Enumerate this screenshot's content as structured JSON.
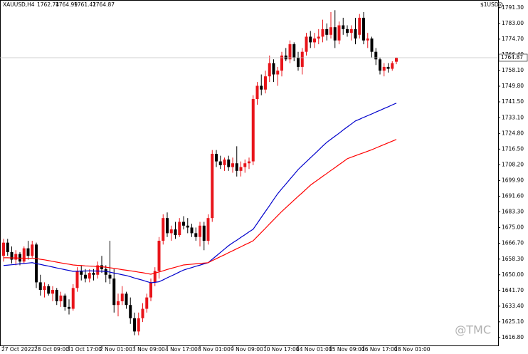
{
  "chart_data": {
    "type": "candlestick",
    "title": "XAUUSD,H4",
    "account": "$1USD",
    "watermark": "@TMC",
    "up_color": "#e8141a",
    "down_color": "#000000",
    "categories": [
      "27 Oct 2022",
      null,
      null,
      null,
      null,
      null,
      null,
      null,
      "28 Oct 09:00",
      null,
      null,
      null,
      null,
      null,
      null,
      null,
      "31 Oct 17:00",
      null,
      null,
      null,
      null,
      null,
      null,
      null,
      "2 Nov 01:00",
      null,
      null,
      null,
      null,
      null,
      null,
      null,
      "3 Nov 09:00",
      null,
      null,
      null,
      null,
      null,
      null,
      null,
      "4 Nov 17:00",
      null,
      null,
      null,
      null,
      null,
      null,
      null,
      "8 Nov 01:00",
      null,
      null,
      null,
      null,
      null,
      null,
      null,
      "9 Nov 09:00",
      null,
      null,
      null,
      null,
      null,
      null,
      null,
      "10 Nov 17:00",
      null,
      null,
      null,
      null,
      null,
      null,
      null,
      "14 Nov 01:00",
      null,
      null,
      null,
      null,
      null,
      null,
      null,
      "15 Nov 09:00",
      null,
      null,
      null,
      null,
      null,
      null,
      null,
      "16 Nov 17:00",
      null,
      null,
      null,
      null,
      null,
      null,
      null,
      "18 Nov 01:00"
    ],
    "open": [
      1660,
      1667,
      1662,
      1658,
      1661,
      1657,
      1664,
      1660,
      1666,
      1646,
      1642,
      1644,
      1640,
      1642,
      1636,
      1639,
      1633,
      1632,
      1643,
      1652,
      1650,
      1648,
      1651,
      1650,
      1655,
      1653,
      1650,
      1648,
      1634,
      1636,
      1640,
      1634,
      1627,
      1620,
      1627,
      1632,
      1638,
      1646,
      1652,
      1668,
      1680,
      1672,
      1674,
      1671,
      1678,
      1676,
      1675,
      1672,
      1670,
      1676,
      1668,
      1680,
      1714,
      1710,
      1708,
      1711,
      1707,
      1709,
      1705,
      1707,
      1709,
      1710,
      1743,
      1750,
      1748,
      1755,
      1762,
      1756,
      1758,
      1766,
      1764,
      1772,
      1765,
      1760,
      1768,
      1776,
      1773,
      1775,
      1776,
      1780,
      1777,
      1781,
      1774,
      1782,
      1780,
      1778,
      1780,
      1777,
      1786,
      1774,
      1775,
      1768,
      1764,
      1758,
      1760,
      1759,
      1762.74
    ],
    "high": [
      1669,
      1669,
      1665,
      1663,
      1662,
      1665,
      1668,
      1668,
      1667,
      1650,
      1646,
      1645,
      1644,
      1643,
      1641,
      1640,
      1637,
      1645,
      1654,
      1655,
      1653,
      1653,
      1653,
      1657,
      1660,
      1655,
      1668,
      1653,
      1640,
      1644,
      1641,
      1638,
      1630,
      1630,
      1635,
      1640,
      1648,
      1654,
      1670,
      1682,
      1683,
      1676,
      1678,
      1680,
      1681,
      1680,
      1677,
      1675,
      1678,
      1678,
      1682,
      1716,
      1716,
      1713,
      1712,
      1713,
      1712,
      1718,
      1710,
      1711,
      1712,
      1745,
      1752,
      1756,
      1758,
      1766,
      1764,
      1760,
      1768,
      1770,
      1774,
      1773,
      1768,
      1770,
      1778,
      1779,
      1778,
      1780,
      1785,
      1783,
      1789,
      1790,
      1784,
      1786,
      1782,
      1782,
      1786,
      1788,
      1789,
      1778,
      1776,
      1770,
      1765,
      1762,
      1762,
      1763,
      1764.99
    ],
    "low": [
      1657,
      1660,
      1656,
      1655,
      1655,
      1656,
      1658,
      1659,
      1643,
      1639,
      1638,
      1639,
      1636,
      1634,
      1633,
      1631,
      1629,
      1631,
      1641,
      1647,
      1646,
      1646,
      1647,
      1648,
      1651,
      1646,
      1645,
      1630,
      1628,
      1634,
      1632,
      1624,
      1618,
      1618,
      1625,
      1630,
      1636,
      1644,
      1648,
      1666,
      1670,
      1668,
      1669,
      1670,
      1674,
      1672,
      1670,
      1668,
      1665,
      1663,
      1666,
      1678,
      1707,
      1706,
      1705,
      1705,
      1704,
      1702,
      1702,
      1704,
      1706,
      1708,
      1740,
      1745,
      1746,
      1752,
      1752,
      1750,
      1755,
      1763,
      1762,
      1763,
      1758,
      1756,
      1766,
      1770,
      1770,
      1772,
      1773,
      1774,
      1775,
      1770,
      1772,
      1777,
      1776,
      1774,
      1772,
      1775,
      1772,
      1770,
      1765,
      1761,
      1756,
      1755,
      1757,
      1758,
      1761.42
    ],
    "close": [
      1667,
      1662,
      1658,
      1661,
      1657,
      1664,
      1660,
      1666,
      1646,
      1642,
      1644,
      1640,
      1642,
      1636,
      1639,
      1633,
      1632,
      1643,
      1652,
      1650,
      1648,
      1651,
      1650,
      1655,
      1653,
      1650,
      1648,
      1634,
      1636,
      1640,
      1634,
      1627,
      1620,
      1627,
      1632,
      1638,
      1646,
      1652,
      1668,
      1680,
      1672,
      1674,
      1671,
      1678,
      1676,
      1675,
      1672,
      1670,
      1676,
      1668,
      1680,
      1714,
      1710,
      1708,
      1711,
      1707,
      1709,
      1705,
      1707,
      1709,
      1710,
      1743,
      1750,
      1748,
      1755,
      1762,
      1756,
      1758,
      1766,
      1764,
      1772,
      1765,
      1760,
      1768,
      1776,
      1773,
      1775,
      1776,
      1780,
      1777,
      1781,
      1774,
      1782,
      1780,
      1778,
      1780,
      1775,
      1786,
      1774,
      1775,
      1768,
      1764,
      1758,
      1760,
      1759,
      1762,
      1764.87
    ],
    "series": [
      {
        "color": "#0000cc",
        "values": [
          1654.9,
          1655.1,
          1655.3,
          1655.5,
          1655.8,
          1656.0,
          1656.2,
          1656.4,
          1655.9,
          1655.5,
          1655.0,
          1654.6,
          1654.1,
          1653.6,
          1653.2,
          1652.7,
          1652.3,
          1651.8,
          1651.9,
          1652.0,
          1652.0,
          1652.1,
          1652.0,
          1652.0,
          1651.9,
          1651.8,
          1651.4,
          1650.9,
          1650.5,
          1650.0,
          1649.6,
          1649.0,
          1648.3,
          1647.7,
          1647.1,
          1646.4,
          1645.8,
          1646.0,
          1646.3,
          1647.3,
          1648.4,
          1649.4,
          1650.4,
          1651.5,
          1652.5,
          1653.2,
          1653.8,
          1654.5,
          1655.1,
          1655.8,
          1656.4,
          1658.2,
          1660.0,
          1661.8,
          1663.6,
          1665.4,
          1666.9,
          1668.3,
          1669.8,
          1671.2,
          1672.7,
          1674.1,
          1677.2,
          1680.4,
          1683.5,
          1686.6,
          1689.8,
          1692.9,
          1695.5,
          1698.0,
          1700.6,
          1703.1,
          1705.7,
          1707.8,
          1709.8,
          1711.9,
          1713.9,
          1716.0,
          1718.1,
          1720.1,
          1721.7,
          1723.3,
          1724.9,
          1726.6,
          1728.2,
          1729.8,
          1731.4,
          1732.3,
          1733.3,
          1734.2,
          1735.1,
          1736.1,
          1737.0,
          1738.0,
          1738.9,
          1739.9,
          1740.8
        ]
      },
      {
        "color": "#ff0000",
        "values": [
          1659.0,
          1659.0,
          1658.9,
          1658.9,
          1658.8,
          1658.8,
          1658.7,
          1658.7,
          1658.6,
          1658.2,
          1657.9,
          1657.5,
          1657.1,
          1656.7,
          1656.3,
          1655.9,
          1655.6,
          1655.2,
          1655.0,
          1654.9,
          1654.7,
          1654.6,
          1654.5,
          1654.3,
          1654.2,
          1654.0,
          1653.7,
          1653.4,
          1653.1,
          1652.7,
          1652.4,
          1652.1,
          1651.8,
          1651.4,
          1651.1,
          1650.7,
          1650.3,
          1650.9,
          1651.5,
          1652.1,
          1652.8,
          1653.4,
          1654.0,
          1654.6,
          1655.2,
          1655.4,
          1655.6,
          1655.8,
          1656.0,
          1656.2,
          1656.4,
          1657.5,
          1658.5,
          1659.6,
          1660.6,
          1661.7,
          1662.7,
          1663.8,
          1664.8,
          1665.9,
          1666.9,
          1668.0,
          1670.2,
          1672.4,
          1674.6,
          1676.9,
          1679.1,
          1681.3,
          1683.5,
          1685.5,
          1687.5,
          1689.5,
          1691.5,
          1693.4,
          1695.4,
          1697.4,
          1699.0,
          1700.5,
          1702.1,
          1703.6,
          1705.2,
          1706.7,
          1708.3,
          1709.8,
          1711.4,
          1712.2,
          1713.0,
          1713.8,
          1714.6,
          1715.4,
          1716.2,
          1717.1,
          1718.0,
          1718.9,
          1719.8,
          1720.7,
          1721.6
        ]
      }
    ],
    "ylim": [
      1612.6,
      1795.4
    ],
    "yticks": [
      {
        "value": 1616.8,
        "label": "1616.80"
      },
      {
        "value": 1625.1,
        "label": "1625.10"
      },
      {
        "value": 1633.4,
        "label": "1633.40"
      },
      {
        "value": 1641.7,
        "label": "1641.70"
      },
      {
        "value": 1650,
        "label": "1650.00"
      },
      {
        "value": 1658.3,
        "label": "1658.30"
      },
      {
        "value": 1666.7,
        "label": "1666.70"
      },
      {
        "value": 1675,
        "label": "1675.00"
      },
      {
        "value": 1683.3,
        "label": "1683.30"
      },
      {
        "value": 1691.6,
        "label": "1691.60"
      },
      {
        "value": 1699.9,
        "label": "1699.90"
      },
      {
        "value": 1708.2,
        "label": "1708.20"
      },
      {
        "value": 1716.5,
        "label": "1716.50"
      },
      {
        "value": 1724.8,
        "label": "1724.80"
      },
      {
        "value": 1733.1,
        "label": "1733.10"
      },
      {
        "value": 1741.5,
        "label": "1741.50"
      },
      {
        "value": 1749.8,
        "label": "1749.80"
      },
      {
        "value": 1758.1,
        "label": "1758.10"
      },
      {
        "value": 1766.4,
        "label": "1766.40"
      },
      {
        "value": 1774.7,
        "label": "1774.70"
      },
      {
        "value": 1783,
        "label": "1783.00"
      },
      {
        "value": 1791.3,
        "label": "1791.30"
      }
    ],
    "grid": false
  }
}
